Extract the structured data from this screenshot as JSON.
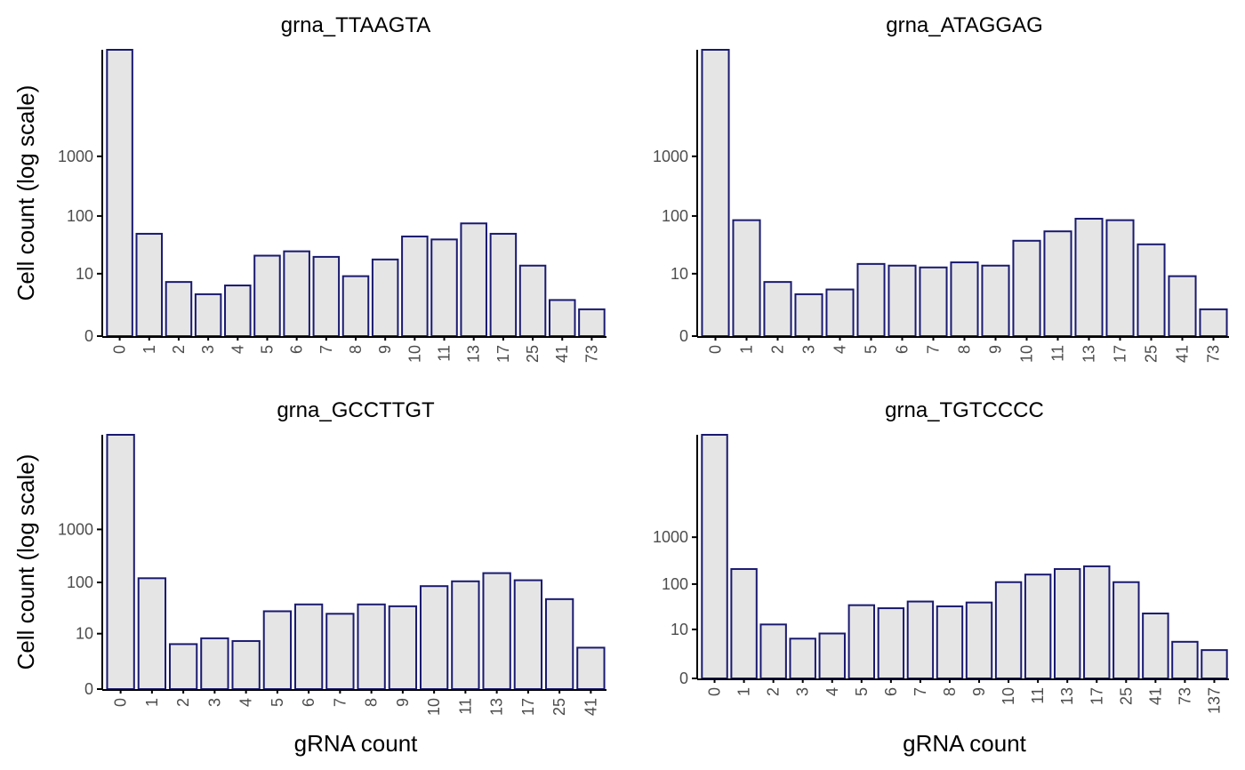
{
  "figure": {
    "bar_fill": "#e5e5e5",
    "bar_outline": "#191970",
    "xlabel": "gRNA count",
    "ylabel": "Cell count (log scale)"
  },
  "chart_data": [
    {
      "type": "bar",
      "title": "grna_TTAAGTA",
      "xlabel": "",
      "ylabel": "Cell count (log scale)",
      "yscale": "log10(1+y)",
      "yticks": [
        0,
        10,
        100,
        1000
      ],
      "ylim": [
        0,
        60000
      ],
      "grid": false,
      "categories": [
        "0",
        "1",
        "2",
        "3",
        "4",
        "5",
        "6",
        "7",
        "8",
        "9",
        "10",
        "11",
        "13",
        "17",
        "25",
        "41",
        "73"
      ],
      "values": [
        60000,
        50,
        7,
        4,
        6,
        21,
        25,
        20,
        9,
        18,
        45,
        40,
        75,
        50,
        14,
        3,
        1.8
      ]
    },
    {
      "type": "bar",
      "title": "grna_ATAGGAG",
      "xlabel": "",
      "ylabel": "",
      "yscale": "log10(1+y)",
      "yticks": [
        0,
        10,
        100,
        1000
      ],
      "ylim": [
        0,
        60000
      ],
      "grid": false,
      "categories": [
        "0",
        "1",
        "2",
        "3",
        "4",
        "5",
        "6",
        "7",
        "8",
        "9",
        "10",
        "11",
        "13",
        "17",
        "25",
        "41",
        "73"
      ],
      "values": [
        60000,
        85,
        7,
        4,
        5,
        15,
        14,
        13,
        16,
        14,
        38,
        55,
        90,
        85,
        33,
        9,
        1.8
      ]
    },
    {
      "type": "bar",
      "title": "grna_GCCTTGT",
      "xlabel": "gRNA count",
      "ylabel": "Cell count (log scale)",
      "yscale": "log10(1+y)",
      "yticks": [
        0,
        10,
        100,
        1000
      ],
      "ylim": [
        0,
        60000
      ],
      "grid": false,
      "categories": [
        "0",
        "1",
        "2",
        "3",
        "4",
        "5",
        "6",
        "7",
        "8",
        "9",
        "10",
        "11",
        "13",
        "17",
        "25",
        "41"
      ],
      "values": [
        60000,
        120,
        6,
        8,
        7,
        28,
        38,
        25,
        38,
        35,
        85,
        105,
        150,
        110,
        48,
        5
      ]
    },
    {
      "type": "bar",
      "title": "grna_TGTCCCC",
      "xlabel": "gRNA count",
      "ylabel": "",
      "yscale": "log10(1+y)",
      "yticks": [
        0,
        10,
        100,
        1000
      ],
      "ylim": [
        0,
        150000
      ],
      "grid": false,
      "categories": [
        "0",
        "1",
        "2",
        "3",
        "4",
        "5",
        "6",
        "7",
        "8",
        "9",
        "10",
        "11",
        "13",
        "17",
        "25",
        "41",
        "73",
        "137"
      ],
      "values": [
        150000,
        210,
        13,
        6,
        8,
        35,
        30,
        42,
        33,
        40,
        110,
        160,
        210,
        240,
        110,
        23,
        5,
        3
      ]
    }
  ]
}
